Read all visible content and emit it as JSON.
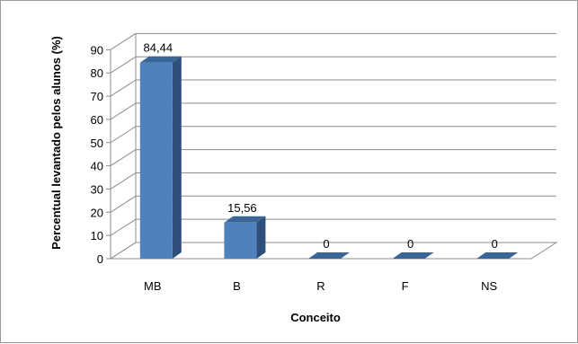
{
  "chart_data": {
    "type": "bar",
    "style": "3d-column",
    "categories": [
      "MB",
      "B",
      "R",
      "F",
      "NS"
    ],
    "values": [
      84.44,
      15.56,
      0,
      0,
      0
    ],
    "value_labels": [
      "84,44",
      "15,56",
      "0",
      "0",
      "0"
    ],
    "title": "",
    "xlabel": "Conceito",
    "ylabel": "Percentual levantado pelos alunos (%)",
    "ylim": [
      0,
      90
    ],
    "yticks": [
      0,
      10,
      20,
      30,
      40,
      50,
      60,
      70,
      80,
      90
    ],
    "grid": true,
    "legend": "none",
    "colors": {
      "bar_front": "#4f81bd",
      "bar_side": "#2d4f7a",
      "bar_top": "#3a6597",
      "grid": "#8c8c8c"
    }
  }
}
